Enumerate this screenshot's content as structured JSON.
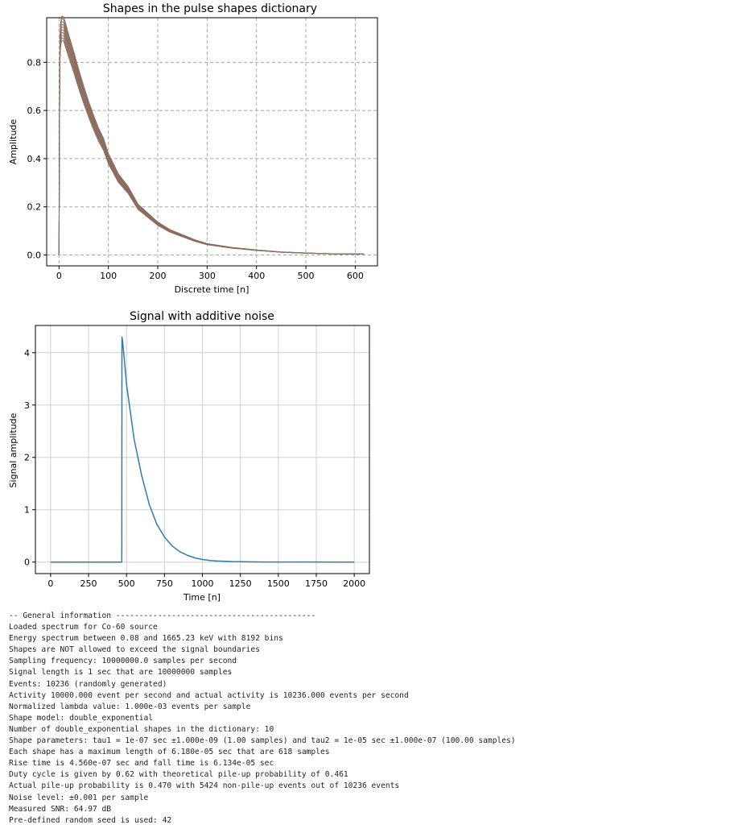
{
  "chart_data": [
    {
      "type": "line",
      "title": "Shapes in the pulse shapes dictionary",
      "xlabel": "Discrete time [n]",
      "ylabel": "Amplitude",
      "xlim": [
        -25,
        645
      ],
      "ylim": [
        -0.045,
        0.985
      ],
      "xticks": [
        0,
        100,
        200,
        300,
        400,
        500,
        600
      ],
      "yticks": [
        0.0,
        0.2,
        0.4,
        0.6,
        0.8
      ],
      "ytick_labels": [
        "0.0",
        "0.2",
        "0.4",
        "0.6",
        "0.8"
      ],
      "grid": "dashed",
      "series_count": 10,
      "color": "#8c6d5f",
      "x": [
        0,
        1,
        2,
        3,
        5,
        8,
        10,
        15,
        20,
        30,
        40,
        50,
        60,
        70,
        80,
        90,
        100,
        120,
        140,
        160,
        180,
        200,
        225,
        250,
        275,
        300,
        350,
        400,
        450,
        500,
        550,
        600,
        618
      ],
      "values": [
        0.0,
        0.6,
        0.86,
        0.91,
        0.94,
        0.94,
        0.935,
        0.9,
        0.865,
        0.8,
        0.73,
        0.665,
        0.605,
        0.55,
        0.5,
        0.46,
        0.4,
        0.32,
        0.27,
        0.2,
        0.165,
        0.13,
        0.1,
        0.08,
        0.06,
        0.045,
        0.03,
        0.02,
        0.012,
        0.008,
        0.005,
        0.004,
        0.004
      ]
    },
    {
      "type": "line",
      "title": "Signal with additive noise",
      "xlabel": "Time [n]",
      "ylabel": "Signal amplitude",
      "xlim": [
        -100,
        2100
      ],
      "ylim": [
        -0.22,
        4.52
      ],
      "xticks": [
        0,
        250,
        500,
        750,
        1000,
        1250,
        1500,
        1750,
        2000
      ],
      "yticks": [
        0,
        1,
        2,
        3,
        4
      ],
      "grid": "solid",
      "color": "#2e7bb2",
      "x": [
        0,
        469,
        470,
        475,
        480,
        500,
        550,
        600,
        650,
        700,
        750,
        800,
        850,
        900,
        950,
        1000,
        1050,
        1100,
        1200,
        1400,
        2000
      ],
      "values": [
        0.0,
        0.0,
        4.3,
        4.2,
        4.05,
        3.4,
        2.35,
        1.65,
        1.1,
        0.72,
        0.48,
        0.31,
        0.2,
        0.13,
        0.08,
        0.05,
        0.03,
        0.02,
        0.008,
        0.002,
        0.0
      ]
    }
  ],
  "console": {
    "lines": [
      "-- General information -------------------------------------------",
      "Loaded spectrum for Co-60 source",
      "Energy spectrum between 0.08 and 1665.23 keV with 8192 bins",
      "Shapes are NOT allowed to exceed the signal boundaries",
      "Sampling frequency: 10000000.0 samples per second",
      "Signal length is 1 sec that are 10000000 samples",
      "Events: 10236 (randomly generated)",
      "Activity 10000.000 event per second and actual activity is 10236.000 events per second",
      "Normalized lambda value: 1.000e-03 events per sample",
      "Shape model: double_exponential",
      "Number of double_exponential shapes in the dictionary: 10",
      "Shape parameters: tau1 = 1e-07 sec ±1.000e-09 (1.00 samples) and tau2 = 1e-05 sec ±1.000e-07 (100.00 samples)",
      "Each shape has a maximum length of 6.180e-05 sec that are 618 samples",
      "Rise time is 4.560e-07 sec and fall time is 6.134e-05 sec",
      "Duty cycle is given by 0.62 with theoretical pile-up probability of 0.461",
      "Actual pile-up probability is 0.470 with 5424 non-pile-up events out of 10236 events",
      "Noise level: ±0.001 per sample",
      "Measured SNR: 64.97 dB",
      "Pre-defined random seed is used: 42"
    ]
  }
}
